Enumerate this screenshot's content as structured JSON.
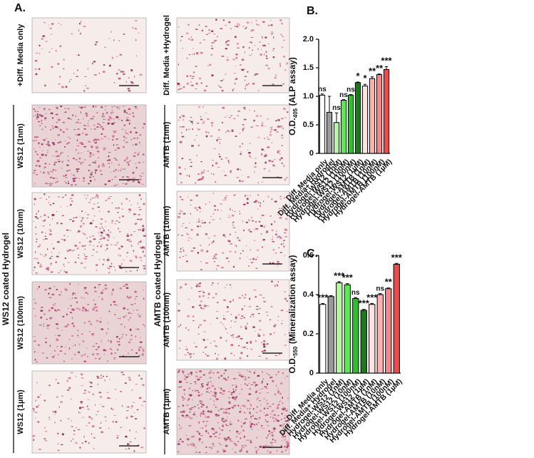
{
  "panel_a": {
    "label": "A.",
    "left_column": {
      "group_label": "WS12 coated Hydrogel",
      "images": [
        {
          "label": "+Diff. Media only"
        },
        {
          "label": "WS12 (1nm)"
        },
        {
          "label": "WS12 (10nm)"
        },
        {
          "label": "WS12 (100nm)"
        },
        {
          "label": "WS12 (1µm)"
        }
      ]
    },
    "right_column": {
      "group_label": "AMTB coated Hydrogel",
      "images": [
        {
          "label": "Diff. Media +Hydrogel"
        },
        {
          "label": "AMTB (1nm)"
        },
        {
          "label": "AMTB (10nm)"
        },
        {
          "label": "AMTB (100nm)"
        },
        {
          "label": "AMTB (1µm)"
        }
      ]
    }
  },
  "chart_data": [
    {
      "type": "bar",
      "panel_label": "B.",
      "ylabel": {
        "main": "O.D.",
        "sub": "405",
        "rest": " (ALP assay)"
      },
      "categories": [
        "Diff. Media only",
        "Diff. Media+ Hydrogel",
        "Hydrogel-WS12 (1nM)",
        "Hydrogel-WS12 (10nM)",
        "Hydrogel-WS12 (100nM)",
        "Hydrogel-WS12 (1µM)",
        "Hydrogel-AMTB (1nM)",
        "Hydrogel-AMTB (10nM)",
        "Hydrogel-AMTB (100nM)",
        "Hydrogel-AMTB (1µM)"
      ],
      "values": [
        1.02,
        0.72,
        0.54,
        0.93,
        1.02,
        1.24,
        1.18,
        1.31,
        1.38,
        1.47
      ],
      "errors": [
        0.02,
        0.28,
        0.17,
        0.01,
        0.01,
        0.01,
        0.03,
        0.03,
        0.01,
        0.05
      ],
      "annotations": [
        "ns",
        null,
        "ns",
        "ns",
        "ns",
        "*",
        "*",
        "**",
        "**",
        "***"
      ],
      "colors": [
        "#ffffff",
        "#9a9a9a",
        "#b8f5a8",
        "#5ee853",
        "#2cc02c",
        "#1b7a1b",
        "#ffe3e3",
        "#f8b2b2",
        "#f28888",
        "#ee4a4a"
      ],
      "ylim": [
        0,
        2.0
      ],
      "yticks": [
        0,
        0.5,
        {
          "value": 1.0,
          "label": "1.0"
        },
        1.5,
        {
          "value": 2.0,
          "label": "2.0"
        }
      ]
    },
    {
      "type": "bar",
      "panel_label": "C.",
      "ylabel": {
        "main": "O.D.",
        "sub": "550",
        "rest": " (Mineralization assay)"
      },
      "categories": [
        "Diff. Media only",
        "Diff. Media+ Hydrogel",
        "Hydrogel-WS12 (1nM)",
        "Hydrogel-WS12 (10nM)",
        "Hydrogel-WS12 (100nM)",
        "Hydrogel-WS12 (1µM)",
        "Hydrogel-AMTB (1nM)",
        "Hydrogel-AMTB (10nM)",
        "Hydrogel-AMTB (100nM)",
        "Hydrogel-AMTB (1µM)"
      ],
      "values": [
        0.35,
        0.39,
        0.46,
        0.45,
        0.38,
        0.32,
        0.35,
        0.4,
        0.43,
        0.555
      ],
      "errors": [
        0.005,
        0.005,
        0.006,
        0.006,
        0.005,
        0.005,
        0.005,
        0.005,
        0.004,
        0.004
      ],
      "annotations": [
        "***",
        null,
        "***",
        "***",
        "ns",
        "***",
        "***",
        "ns",
        "**",
        "***"
      ],
      "colors": [
        "#ffffff",
        "#9a9a9a",
        "#b8f5a8",
        "#5ee853",
        "#2cc02c",
        "#1b7a1b",
        "#ffe3e3",
        "#f8b2b2",
        "#f28888",
        "#ee4a4a"
      ],
      "ylim": [
        0,
        0.6
      ],
      "yticks": [
        0,
        0.2,
        0.4,
        0.6
      ]
    }
  ]
}
